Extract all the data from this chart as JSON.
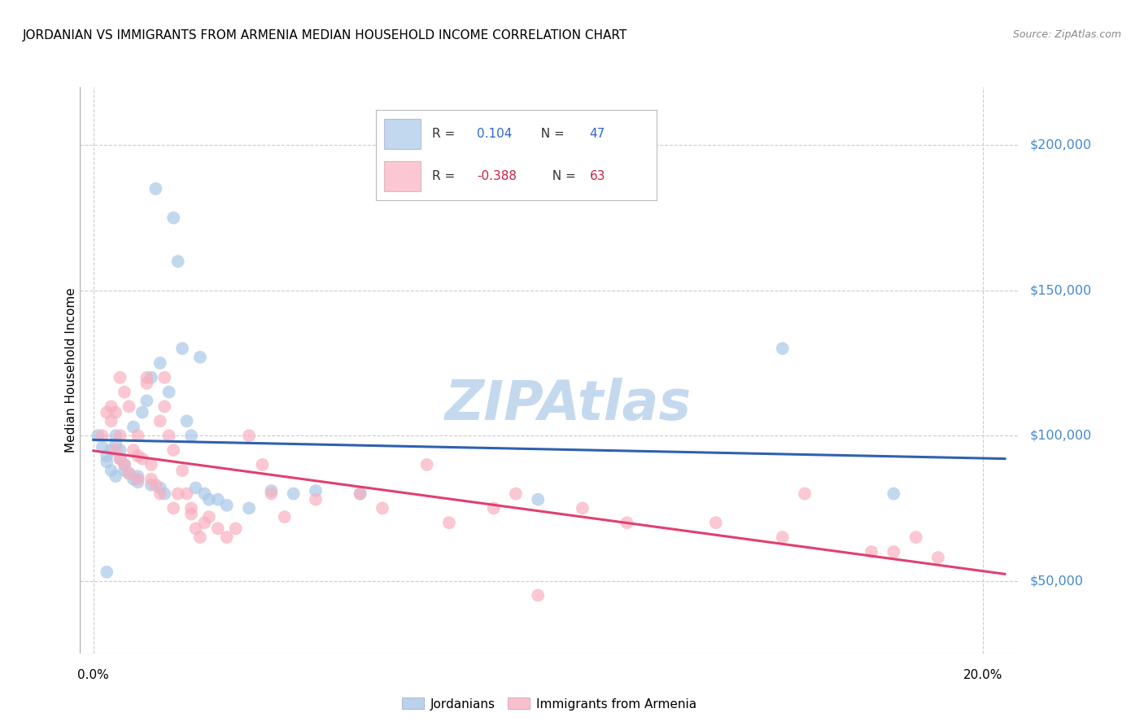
{
  "title": "JORDANIAN VS IMMIGRANTS FROM ARMENIA MEDIAN HOUSEHOLD INCOME CORRELATION CHART",
  "source": "Source: ZipAtlas.com",
  "xlabel_ticks": [
    "0.0%",
    "20.0%"
  ],
  "xlabel_vals": [
    0.0,
    0.2
  ],
  "ylabel_vals": [
    50000,
    100000,
    150000,
    200000
  ],
  "ylim": [
    25000,
    220000
  ],
  "xlim": [
    -0.003,
    0.208
  ],
  "ylabel_label": "Median Household Income",
  "legend1_r": "0.104",
  "legend1_n": "47",
  "legend2_r": "-0.388",
  "legend2_n": "63",
  "blue_color": "#a8c8e8",
  "pink_color": "#f8b0c0",
  "blue_line_color": "#3060b0",
  "pink_line_color": "#e04070",
  "watermark_color": "#c5d9ee",
  "grid_color": "#cccccc",
  "background_color": "#ffffff",
  "blue_scatter_x": [
    0.001,
    0.002,
    0.003,
    0.003,
    0.004,
    0.004,
    0.005,
    0.005,
    0.005,
    0.006,
    0.006,
    0.007,
    0.007,
    0.008,
    0.009,
    0.009,
    0.01,
    0.01,
    0.011,
    0.012,
    0.013,
    0.013,
    0.014,
    0.015,
    0.015,
    0.016,
    0.017,
    0.018,
    0.019,
    0.02,
    0.021,
    0.022,
    0.023,
    0.024,
    0.025,
    0.026,
    0.028,
    0.03,
    0.035,
    0.04,
    0.045,
    0.05,
    0.06,
    0.1,
    0.155,
    0.18,
    0.003
  ],
  "blue_scatter_y": [
    100000,
    96000,
    93000,
    91000,
    95000,
    88000,
    100000,
    97000,
    86000,
    95000,
    92000,
    90000,
    88000,
    87000,
    85000,
    103000,
    86000,
    84000,
    108000,
    112000,
    120000,
    83000,
    185000,
    125000,
    82000,
    80000,
    115000,
    175000,
    160000,
    130000,
    105000,
    100000,
    82000,
    127000,
    80000,
    78000,
    78000,
    76000,
    75000,
    81000,
    80000,
    81000,
    80000,
    78000,
    130000,
    80000,
    53000
  ],
  "pink_scatter_x": [
    0.002,
    0.003,
    0.004,
    0.004,
    0.005,
    0.005,
    0.006,
    0.006,
    0.006,
    0.007,
    0.007,
    0.008,
    0.008,
    0.009,
    0.01,
    0.01,
    0.01,
    0.011,
    0.012,
    0.012,
    0.013,
    0.013,
    0.014,
    0.015,
    0.015,
    0.016,
    0.016,
    0.017,
    0.018,
    0.018,
    0.019,
    0.02,
    0.021,
    0.022,
    0.022,
    0.023,
    0.024,
    0.025,
    0.026,
    0.028,
    0.03,
    0.032,
    0.035,
    0.038,
    0.04,
    0.043,
    0.05,
    0.06,
    0.065,
    0.075,
    0.08,
    0.09,
    0.095,
    0.1,
    0.11,
    0.12,
    0.14,
    0.155,
    0.16,
    0.175,
    0.18,
    0.185,
    0.19
  ],
  "pink_scatter_y": [
    100000,
    108000,
    110000,
    105000,
    108000,
    95000,
    120000,
    100000,
    92000,
    115000,
    90000,
    110000,
    87000,
    95000,
    100000,
    93000,
    85000,
    92000,
    120000,
    118000,
    90000,
    85000,
    83000,
    105000,
    80000,
    120000,
    110000,
    100000,
    95000,
    75000,
    80000,
    88000,
    80000,
    75000,
    73000,
    68000,
    65000,
    70000,
    72000,
    68000,
    65000,
    68000,
    100000,
    90000,
    80000,
    72000,
    78000,
    80000,
    75000,
    90000,
    70000,
    75000,
    80000,
    45000,
    75000,
    70000,
    70000,
    65000,
    80000,
    60000,
    60000,
    65000,
    58000
  ]
}
